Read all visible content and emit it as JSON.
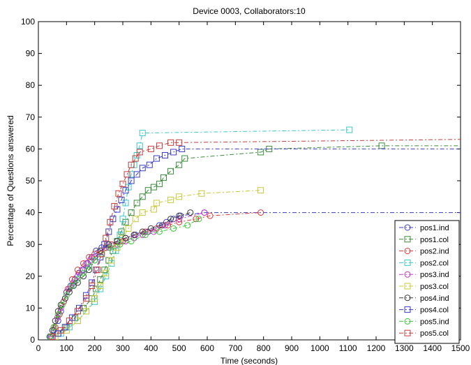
{
  "chart_data": {
    "type": "line",
    "title": "Device 0003, Collaborators:10",
    "xlabel": "Time (seconds)",
    "ylabel": "Percentage of Questions answered",
    "xlim": [
      0,
      1500
    ],
    "ylim": [
      0,
      100
    ],
    "xticks": [
      "0",
      "100",
      "200",
      "300",
      "400",
      "500",
      "600",
      "700",
      "800",
      "900",
      "1000",
      "1100",
      "1200",
      "1300",
      "1400",
      "1500"
    ],
    "yticks": [
      "0",
      "10",
      "20",
      "30",
      "40",
      "50",
      "60",
      "70",
      "80",
      "90",
      "100"
    ],
    "grid": false,
    "legend_position": "bottom-right",
    "series": [
      {
        "name": "pos1.ind",
        "color": "#3a3ac8",
        "marker": "circle",
        "x": [
          40,
          55,
          70,
          80,
          90,
          100,
          115,
          130,
          145,
          160,
          175,
          190,
          205,
          225,
          250,
          280,
          310,
          345,
          390,
          430,
          455,
          480,
          505,
          590,
          1500
        ],
        "y": [
          1,
          3,
          6,
          9,
          12,
          15,
          17,
          19,
          21,
          22,
          24,
          26,
          28,
          29,
          30,
          31,
          32,
          33,
          34,
          36,
          37,
          38,
          39,
          40,
          40
        ]
      },
      {
        "name": "pos1.col",
        "color": "#3a8a3a",
        "marker": "square",
        "x": [
          45,
          70,
          100,
          130,
          160,
          190,
          205,
          220,
          235,
          250,
          265,
          280,
          295,
          310,
          330,
          350,
          370,
          390,
          410,
          430,
          445,
          470,
          500,
          520,
          790,
          820,
          1220,
          1500
        ],
        "y": [
          1,
          2,
          4,
          7,
          10,
          13,
          16,
          19,
          22,
          25,
          28,
          31,
          34,
          37,
          40,
          43,
          45,
          47,
          48,
          49,
          51,
          53,
          55,
          57,
          59,
          60,
          61,
          61
        ]
      },
      {
        "name": "pos2.ind",
        "color": "#d83a3a",
        "marker": "circle",
        "x": [
          40,
          60,
          75,
          90,
          105,
          120,
          140,
          160,
          180,
          200,
          220,
          240,
          260,
          300,
          340,
          380,
          420,
          460,
          500,
          560,
          610,
          790
        ],
        "y": [
          1,
          4,
          8,
          12,
          16,
          19,
          22,
          24,
          26,
          27,
          28,
          29,
          30,
          31,
          33,
          34,
          35,
          36,
          37,
          38,
          39,
          40
        ]
      },
      {
        "name": "pos2.col",
        "color": "#3ac8c8",
        "marker": "square",
        "x": [
          50,
          80,
          110,
          140,
          170,
          200,
          220,
          240,
          260,
          275,
          290,
          300,
          310,
          320,
          330,
          340,
          350,
          360,
          370,
          1105
        ],
        "y": [
          1,
          2,
          4,
          6,
          9,
          12,
          16,
          20,
          24,
          28,
          33,
          38,
          43,
          48,
          52,
          55,
          58,
          61,
          65,
          66
        ]
      },
      {
        "name": "pos3.ind",
        "color": "#c83ac8",
        "marker": "circle",
        "x": [
          42,
          55,
          68,
          80,
          95,
          110,
          125,
          140,
          155,
          170,
          185,
          200,
          220,
          250,
          280,
          310,
          340,
          370,
          410,
          450,
          500,
          590
        ],
        "y": [
          1,
          4,
          7,
          10,
          13,
          16,
          18,
          20,
          22,
          24,
          25,
          26,
          28,
          29,
          30,
          31,
          32,
          33,
          34,
          36,
          38,
          40
        ]
      },
      {
        "name": "pos3.col",
        "color": "#c8c83a",
        "marker": "square",
        "x": [
          60,
          100,
          140,
          170,
          200,
          220,
          240,
          260,
          280,
          300,
          320,
          345,
          370,
          410,
          420,
          470,
          500,
          580,
          790
        ],
        "y": [
          1,
          3,
          6,
          9,
          13,
          17,
          21,
          25,
          29,
          32,
          35,
          38,
          40,
          41,
          43,
          44,
          45,
          46,
          47
        ]
      },
      {
        "name": "pos4.ind",
        "color": "#3a3a3a",
        "marker": "circle",
        "x": [
          40,
          50,
          60,
          70,
          80,
          95,
          110,
          125,
          140,
          160,
          180,
          200,
          220,
          250,
          280,
          310,
          340,
          370,
          400,
          440,
          470,
          500,
          540
        ],
        "y": [
          1,
          3,
          6,
          9,
          11,
          13,
          15,
          17,
          18,
          20,
          22,
          25,
          28,
          30,
          31,
          32,
          33,
          34,
          35,
          36,
          38,
          39,
          40
        ]
      },
      {
        "name": "pos4.col",
        "color": "#3a3ac8",
        "marker": "square",
        "x": [
          45,
          70,
          95,
          120,
          145,
          170,
          190,
          205,
          220,
          235,
          250,
          265,
          280,
          295,
          310,
          330,
          350,
          370,
          395,
          420,
          450,
          480,
          510,
          1500
        ],
        "y": [
          1,
          2,
          4,
          7,
          10,
          14,
          18,
          22,
          26,
          30,
          34,
          38,
          41,
          44,
          47,
          50,
          52,
          54,
          55,
          57,
          58,
          59,
          60,
          60
        ]
      },
      {
        "name": "pos5.ind",
        "color": "#3ac83a",
        "marker": "circle",
        "x": [
          40,
          55,
          70,
          85,
          100,
          120,
          140,
          160,
          180,
          200,
          225,
          255,
          290,
          330,
          380,
          430,
          480,
          530,
          570
        ],
        "y": [
          1,
          4,
          8,
          11,
          14,
          17,
          19,
          21,
          23,
          25,
          27,
          29,
          30,
          31,
          33,
          34,
          35,
          36,
          38
        ]
      },
      {
        "name": "pos5.col",
        "color": "#c83a3a",
        "marker": "square",
        "x": [
          50,
          80,
          110,
          140,
          170,
          190,
          210,
          225,
          240,
          255,
          270,
          285,
          300,
          315,
          330,
          345,
          360,
          400,
          430,
          470,
          500,
          1500
        ],
        "y": [
          1,
          3,
          6,
          9,
          13,
          17,
          22,
          27,
          32,
          37,
          42,
          46,
          49,
          52,
          55,
          57,
          59,
          60,
          61,
          62,
          62,
          63
        ]
      }
    ]
  }
}
